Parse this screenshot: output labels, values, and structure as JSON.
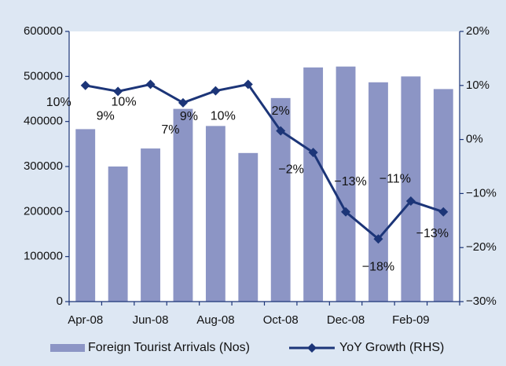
{
  "chart_data": {
    "type": "bar_line",
    "categories": [
      "Apr-08",
      null,
      "Jun-08",
      null,
      "Aug-08",
      null,
      "Oct-08",
      null,
      "Dec-08",
      null,
      "Feb-09",
      null
    ],
    "series": [
      {
        "name": "Foreign Tourist Arrivals (Nos)",
        "type": "bar",
        "color": "#8c95c5",
        "values": [
          383000,
          300000,
          340000,
          428000,
          390000,
          330000,
          452000,
          520000,
          522000,
          487000,
          500000,
          472000
        ]
      },
      {
        "name": "YoY Growth (RHS)",
        "type": "line",
        "axis": "y2",
        "color": "#1c3578",
        "values": [
          10.0,
          8.9,
          10.2,
          6.8,
          9.0,
          10.2,
          1.6,
          -2.4,
          -13.4,
          -18.4,
          -11.4,
          -13.4
        ],
        "value_labels": [
          "10%",
          "9%",
          "10%",
          "7%",
          "9%",
          "10%",
          "2%",
          "−2%",
          "−13%",
          "−18%",
          "−11%",
          "−13%"
        ]
      }
    ],
    "ylim": [
      0,
      600000
    ],
    "yticks": [
      0,
      100000,
      200000,
      300000,
      400000,
      500000,
      600000
    ],
    "y2lim": [
      -30,
      20
    ],
    "y2ticks": [
      {
        "value": -30,
        "label": "−30%"
      },
      {
        "value": -20,
        "label": "−20%"
      },
      {
        "value": -10,
        "label": "−10%"
      },
      {
        "value": 0,
        "label": "0%"
      },
      {
        "value": 10,
        "label": "10%"
      },
      {
        "value": 20,
        "label": "20%"
      }
    ],
    "legend": "bottom"
  }
}
